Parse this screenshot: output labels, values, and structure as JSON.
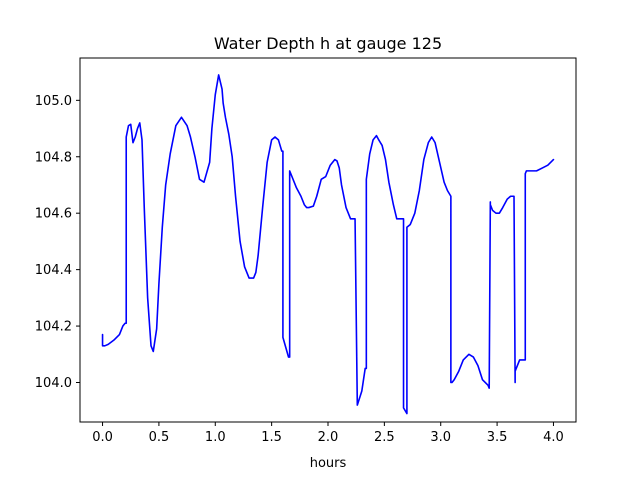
{
  "chart_data": {
    "type": "line",
    "title": "Water Depth h at gauge 125",
    "xlabel": "hours",
    "ylabel": "",
    "xlim": [
      -0.2,
      4.2
    ],
    "ylim": [
      103.86,
      105.15
    ],
    "xticks": [
      0.0,
      0.5,
      1.0,
      1.5,
      2.0,
      2.5,
      3.0,
      3.5,
      4.0
    ],
    "xtick_labels": [
      "0.0",
      "0.5",
      "1.0",
      "1.5",
      "2.0",
      "2.5",
      "3.0",
      "3.5",
      "4.0"
    ],
    "yticks": [
      104.0,
      104.2,
      104.4,
      104.6,
      104.8,
      105.0
    ],
    "ytick_labels": [
      "104.0",
      "104.2",
      "104.4",
      "104.6",
      "104.8",
      "105.0"
    ],
    "grid": false,
    "legend": "none",
    "series": [
      {
        "color": "#0000ff",
        "x": [
          0.0,
          0.0,
          0.02,
          0.05,
          0.1,
          0.15,
          0.18,
          0.2,
          0.21,
          0.21,
          0.23,
          0.25,
          0.27,
          0.29,
          0.31,
          0.33,
          0.35,
          0.37,
          0.4,
          0.43,
          0.45,
          0.48,
          0.5,
          0.53,
          0.56,
          0.6,
          0.65,
          0.7,
          0.75,
          0.78,
          0.82,
          0.86,
          0.9,
          0.95,
          0.97,
          1.0,
          1.03,
          1.06,
          1.07,
          1.09,
          1.12,
          1.15,
          1.18,
          1.22,
          1.26,
          1.3,
          1.34,
          1.36,
          1.38,
          1.42,
          1.46,
          1.5,
          1.53,
          1.56,
          1.59,
          1.6,
          1.6,
          1.65,
          1.66,
          1.66,
          1.68,
          1.72,
          1.76,
          1.79,
          1.81,
          1.83,
          1.87,
          1.9,
          1.94,
          1.98,
          2.02,
          2.06,
          2.08,
          2.1,
          2.12,
          2.16,
          2.2,
          2.23,
          2.24,
          2.26,
          2.26,
          2.3,
          2.33,
          2.34,
          2.34,
          2.37,
          2.4,
          2.43,
          2.45,
          2.48,
          2.51,
          2.54,
          2.58,
          2.61,
          2.65,
          2.67,
          2.67,
          2.7,
          2.7,
          2.73,
          2.77,
          2.81,
          2.85,
          2.89,
          2.92,
          2.95,
          2.99,
          3.03,
          3.06,
          3.09,
          3.09,
          3.1,
          3.12,
          3.16,
          3.2,
          3.25,
          3.29,
          3.33,
          3.37,
          3.42,
          3.43,
          3.44,
          3.44,
          3.46,
          3.49,
          3.52,
          3.55,
          3.59,
          3.62,
          3.65,
          3.66,
          3.66,
          3.7,
          3.75,
          3.75,
          3.76,
          3.79,
          3.85,
          3.9,
          3.95,
          4.0
        ],
        "y": [
          104.17,
          104.13,
          104.13,
          104.135,
          104.15,
          104.17,
          104.2,
          104.21,
          104.21,
          104.87,
          104.91,
          104.915,
          104.85,
          104.87,
          104.9,
          104.92,
          104.86,
          104.62,
          104.3,
          104.13,
          104.11,
          104.19,
          104.35,
          104.55,
          104.7,
          104.81,
          104.91,
          104.94,
          104.91,
          104.87,
          104.8,
          104.72,
          104.71,
          104.78,
          104.9,
          105.02,
          105.09,
          105.04,
          104.99,
          104.94,
          104.88,
          104.8,
          104.66,
          104.5,
          104.41,
          104.37,
          104.37,
          104.39,
          104.45,
          104.62,
          104.78,
          104.86,
          104.87,
          104.86,
          104.82,
          104.82,
          104.16,
          104.09,
          104.09,
          104.75,
          104.73,
          104.69,
          104.66,
          104.63,
          104.62,
          104.62,
          104.625,
          104.66,
          104.72,
          104.73,
          104.77,
          104.79,
          104.785,
          104.76,
          104.7,
          104.62,
          104.58,
          104.58,
          104.58,
          103.92,
          103.92,
          103.97,
          104.05,
          104.05,
          104.72,
          104.81,
          104.86,
          104.875,
          104.86,
          104.84,
          104.79,
          104.71,
          104.63,
          104.58,
          104.58,
          104.58,
          103.91,
          103.89,
          104.55,
          104.56,
          104.6,
          104.68,
          104.79,
          104.85,
          104.87,
          104.85,
          104.78,
          104.71,
          104.68,
          104.66,
          104.0,
          104.0,
          104.01,
          104.04,
          104.08,
          104.1,
          104.09,
          104.06,
          104.01,
          103.99,
          103.98,
          104.64,
          104.63,
          104.61,
          104.6,
          104.6,
          104.62,
          104.65,
          104.66,
          104.66,
          104.0,
          104.04,
          104.08,
          104.08,
          104.74,
          104.75,
          104.75,
          104.75,
          104.76,
          104.77,
          104.79
        ]
      }
    ]
  }
}
